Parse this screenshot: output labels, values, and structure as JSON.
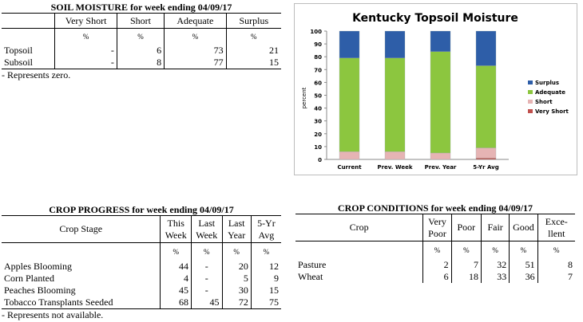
{
  "soil_moisture": {
    "title": "SOIL MOISTURE for week ending 04/09/17",
    "columns": [
      "Very Short",
      "Short",
      "Adequate",
      "Surplus"
    ],
    "unit": "%",
    "rows": [
      {
        "label": "Topsoil",
        "values": [
          "-",
          "6",
          "73",
          "21"
        ]
      },
      {
        "label": "Subsoil",
        "values": [
          "-",
          "8",
          "77",
          "15"
        ]
      }
    ],
    "note": "- Represents zero."
  },
  "crop_progress": {
    "title": "CROP PROGRESS for week ending 04/09/17",
    "stage_header": "Crop Stage",
    "columns": [
      [
        "This",
        "Week"
      ],
      [
        "Last",
        "Week"
      ],
      [
        "Last",
        "Year"
      ],
      [
        "5-Yr",
        "Avg"
      ]
    ],
    "unit": "%",
    "rows": [
      {
        "label": "Apples Blooming",
        "values": [
          "44",
          "-",
          "20",
          "12"
        ]
      },
      {
        "label": "Corn Planted",
        "values": [
          "4",
          "-",
          "5",
          "9"
        ]
      },
      {
        "label": "Peaches Blooming",
        "values": [
          "45",
          "-",
          "30",
          "15"
        ]
      },
      {
        "label": "Tobacco Transplants Seeded",
        "values": [
          "68",
          "45",
          "72",
          "75"
        ]
      }
    ],
    "note": "- Represents not available."
  },
  "crop_conditions": {
    "title": "CROP CONDITIONS for week ending 04/09/17",
    "crop_header": "Crop",
    "columns": [
      [
        "Very",
        "Poor"
      ],
      [
        "Poor"
      ],
      [
        "Fair"
      ],
      [
        "Good"
      ],
      [
        "Exce-",
        "llent"
      ]
    ],
    "unit": "%",
    "rows": [
      {
        "label": "Pasture",
        "values": [
          "2",
          "7",
          "32",
          "51",
          "8"
        ]
      },
      {
        "label": "Wheat",
        "values": [
          "6",
          "18",
          "33",
          "36",
          "7"
        ]
      }
    ]
  },
  "chart_data": {
    "type": "bar",
    "stacked": true,
    "title": "Kentucky Topsoil Moisture",
    "ylabel": "percent",
    "xlabel": "",
    "ylim": [
      0,
      100
    ],
    "yticks": [
      0,
      10,
      20,
      30,
      40,
      50,
      60,
      70,
      80,
      90,
      100
    ],
    "categories": [
      "Current",
      "Prev. Week",
      "Prev. Year",
      "5-Yr Avg"
    ],
    "series": [
      {
        "name": "Very Short",
        "color": "#c0504d",
        "values": [
          0,
          0,
          0,
          1
        ]
      },
      {
        "name": "Short",
        "color": "#e6b4b4",
        "values": [
          6,
          6,
          5,
          8
        ]
      },
      {
        "name": "Adequate",
        "color": "#8cc63f",
        "values": [
          73,
          73,
          79,
          64
        ]
      },
      {
        "name": "Surplus",
        "color": "#2e5ea8",
        "values": [
          21,
          21,
          16,
          27
        ]
      }
    ],
    "legend_position": "right",
    "grid": false
  }
}
